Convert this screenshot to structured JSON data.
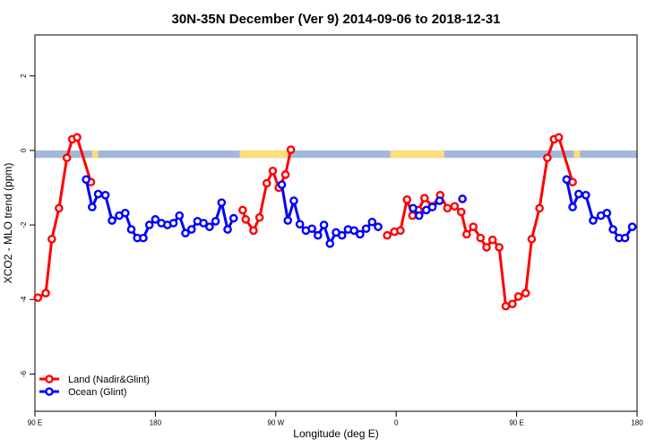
{
  "chart_data": {
    "type": "line",
    "title": "30N-35N December (Ver 9)   2014-09-06 to 2018-12-31",
    "xlabel": "Longitude (deg E)",
    "ylabel": "XCO2 - MLO trend (ppm)",
    "xlim": [
      0,
      1.0
    ],
    "ylim": [
      -7,
      3.1
    ],
    "x_ticks": [
      {
        "pos": 0.0,
        "label": "90 E"
      },
      {
        "pos": 0.2,
        "label": "180"
      },
      {
        "pos": 0.4,
        "label": "90 W"
      },
      {
        "pos": 0.6,
        "label": "0"
      },
      {
        "pos": 0.8,
        "label": "90 E"
      },
      {
        "pos": 1.0,
        "label": "180"
      }
    ],
    "y_ticks": [
      2,
      0,
      -2,
      -4,
      -6
    ],
    "band": {
      "y_top": 0.0,
      "y_bottom": -0.2,
      "ocean_color": "#a3b8d9",
      "land_color": "#fedd7a",
      "land_ranges": [
        [
          0.095,
          0.105
        ],
        [
          0.34,
          0.42
        ],
        [
          0.59,
          0.68
        ],
        [
          0.895,
          0.905
        ]
      ]
    },
    "series": [
      {
        "name": "Land (Nadir&Glint)",
        "color": "#ff0000",
        "points": [
          [
            0.005,
            -3.95
          ],
          [
            0.018,
            -3.83
          ],
          [
            0.028,
            -2.38
          ],
          [
            0.04,
            -1.55
          ],
          [
            0.053,
            -0.2
          ],
          [
            0.062,
            0.3
          ],
          [
            0.07,
            0.35
          ],
          [
            0.093,
            -0.85
          ],
          null,
          [
            0.345,
            -1.6
          ],
          [
            0.35,
            -1.85
          ],
          [
            0.363,
            -2.15
          ],
          [
            0.373,
            -1.8
          ],
          [
            0.385,
            -0.88
          ],
          [
            0.395,
            -0.55
          ],
          [
            0.405,
            -1.0
          ],
          [
            0.416,
            -0.65
          ],
          [
            0.425,
            0.02
          ],
          null,
          [
            0.585,
            -2.28
          ],
          [
            0.597,
            -2.18
          ],
          [
            0.607,
            -2.15
          ],
          [
            0.618,
            -1.32
          ],
          [
            0.627,
            -1.75
          ],
          [
            0.637,
            -1.6
          ],
          [
            0.647,
            -1.28
          ],
          [
            0.66,
            -1.5
          ],
          [
            0.673,
            -1.2
          ],
          [
            0.685,
            -1.55
          ],
          [
            0.697,
            -1.5
          ],
          [
            0.708,
            -1.65
          ],
          [
            0.717,
            -2.25
          ],
          [
            0.728,
            -2.05
          ],
          [
            0.74,
            -2.35
          ],
          [
            0.75,
            -2.6
          ],
          [
            0.76,
            -2.4
          ],
          [
            0.771,
            -2.6
          ],
          [
            0.782,
            -4.18
          ],
          [
            0.793,
            -4.12
          ],
          [
            0.803,
            -3.92
          ],
          [
            0.815,
            -3.83
          ],
          [
            0.825,
            -2.38
          ],
          [
            0.838,
            -1.55
          ],
          [
            0.851,
            -0.2
          ],
          [
            0.862,
            0.3
          ],
          [
            0.87,
            0.35
          ],
          [
            0.893,
            -0.85
          ]
        ]
      },
      {
        "name": "Ocean (Glint)",
        "color": "#0000ff",
        "points": [
          [
            0.085,
            -0.78
          ],
          [
            0.095,
            -1.52
          ],
          [
            0.105,
            -1.17
          ],
          [
            0.117,
            -1.2
          ],
          [
            0.128,
            -1.88
          ],
          [
            0.14,
            -1.75
          ],
          [
            0.15,
            -1.68
          ],
          [
            0.16,
            -2.12
          ],
          [
            0.17,
            -2.35
          ],
          [
            0.18,
            -2.35
          ],
          [
            0.19,
            -2.0
          ],
          [
            0.2,
            -1.85
          ],
          [
            0.21,
            -1.95
          ],
          [
            0.22,
            -2.0
          ],
          [
            0.23,
            -1.95
          ],
          [
            0.24,
            -1.75
          ],
          [
            0.25,
            -2.22
          ],
          [
            0.26,
            -2.12
          ],
          [
            0.27,
            -1.9
          ],
          [
            0.28,
            -1.95
          ],
          [
            0.29,
            -2.05
          ],
          [
            0.3,
            -1.9
          ],
          [
            0.31,
            -1.4
          ],
          [
            0.32,
            -2.12
          ],
          [
            0.33,
            -1.82
          ],
          null,
          [
            0.41,
            -0.92
          ],
          [
            0.42,
            -1.88
          ],
          [
            0.43,
            -1.35
          ],
          [
            0.44,
            -1.98
          ],
          [
            0.45,
            -2.15
          ],
          [
            0.46,
            -2.1
          ],
          [
            0.47,
            -2.28
          ],
          [
            0.48,
            -2.0
          ],
          [
            0.49,
            -2.5
          ],
          [
            0.5,
            -2.2
          ],
          [
            0.51,
            -2.28
          ],
          [
            0.52,
            -2.12
          ],
          [
            0.53,
            -2.15
          ],
          [
            0.54,
            -2.25
          ],
          [
            0.55,
            -2.1
          ],
          [
            0.56,
            -1.92
          ],
          [
            0.57,
            -2.05
          ],
          null,
          [
            0.628,
            -1.55
          ],
          [
            0.638,
            -1.75
          ],
          [
            0.65,
            -1.6
          ],
          [
            0.66,
            -1.52
          ],
          [
            0.672,
            -1.35
          ],
          null,
          [
            0.71,
            -1.3
          ],
          null,
          [
            0.883,
            -0.78
          ],
          [
            0.893,
            -1.52
          ],
          [
            0.903,
            -1.17
          ],
          [
            0.915,
            -1.2
          ],
          [
            0.927,
            -1.88
          ],
          [
            0.94,
            -1.75
          ],
          [
            0.95,
            -1.68
          ],
          [
            0.96,
            -2.12
          ],
          [
            0.97,
            -2.35
          ],
          [
            0.98,
            -2.35
          ],
          [
            0.992,
            -2.05
          ]
        ]
      }
    ],
    "legend_position": "bottom-left",
    "grid": false
  }
}
